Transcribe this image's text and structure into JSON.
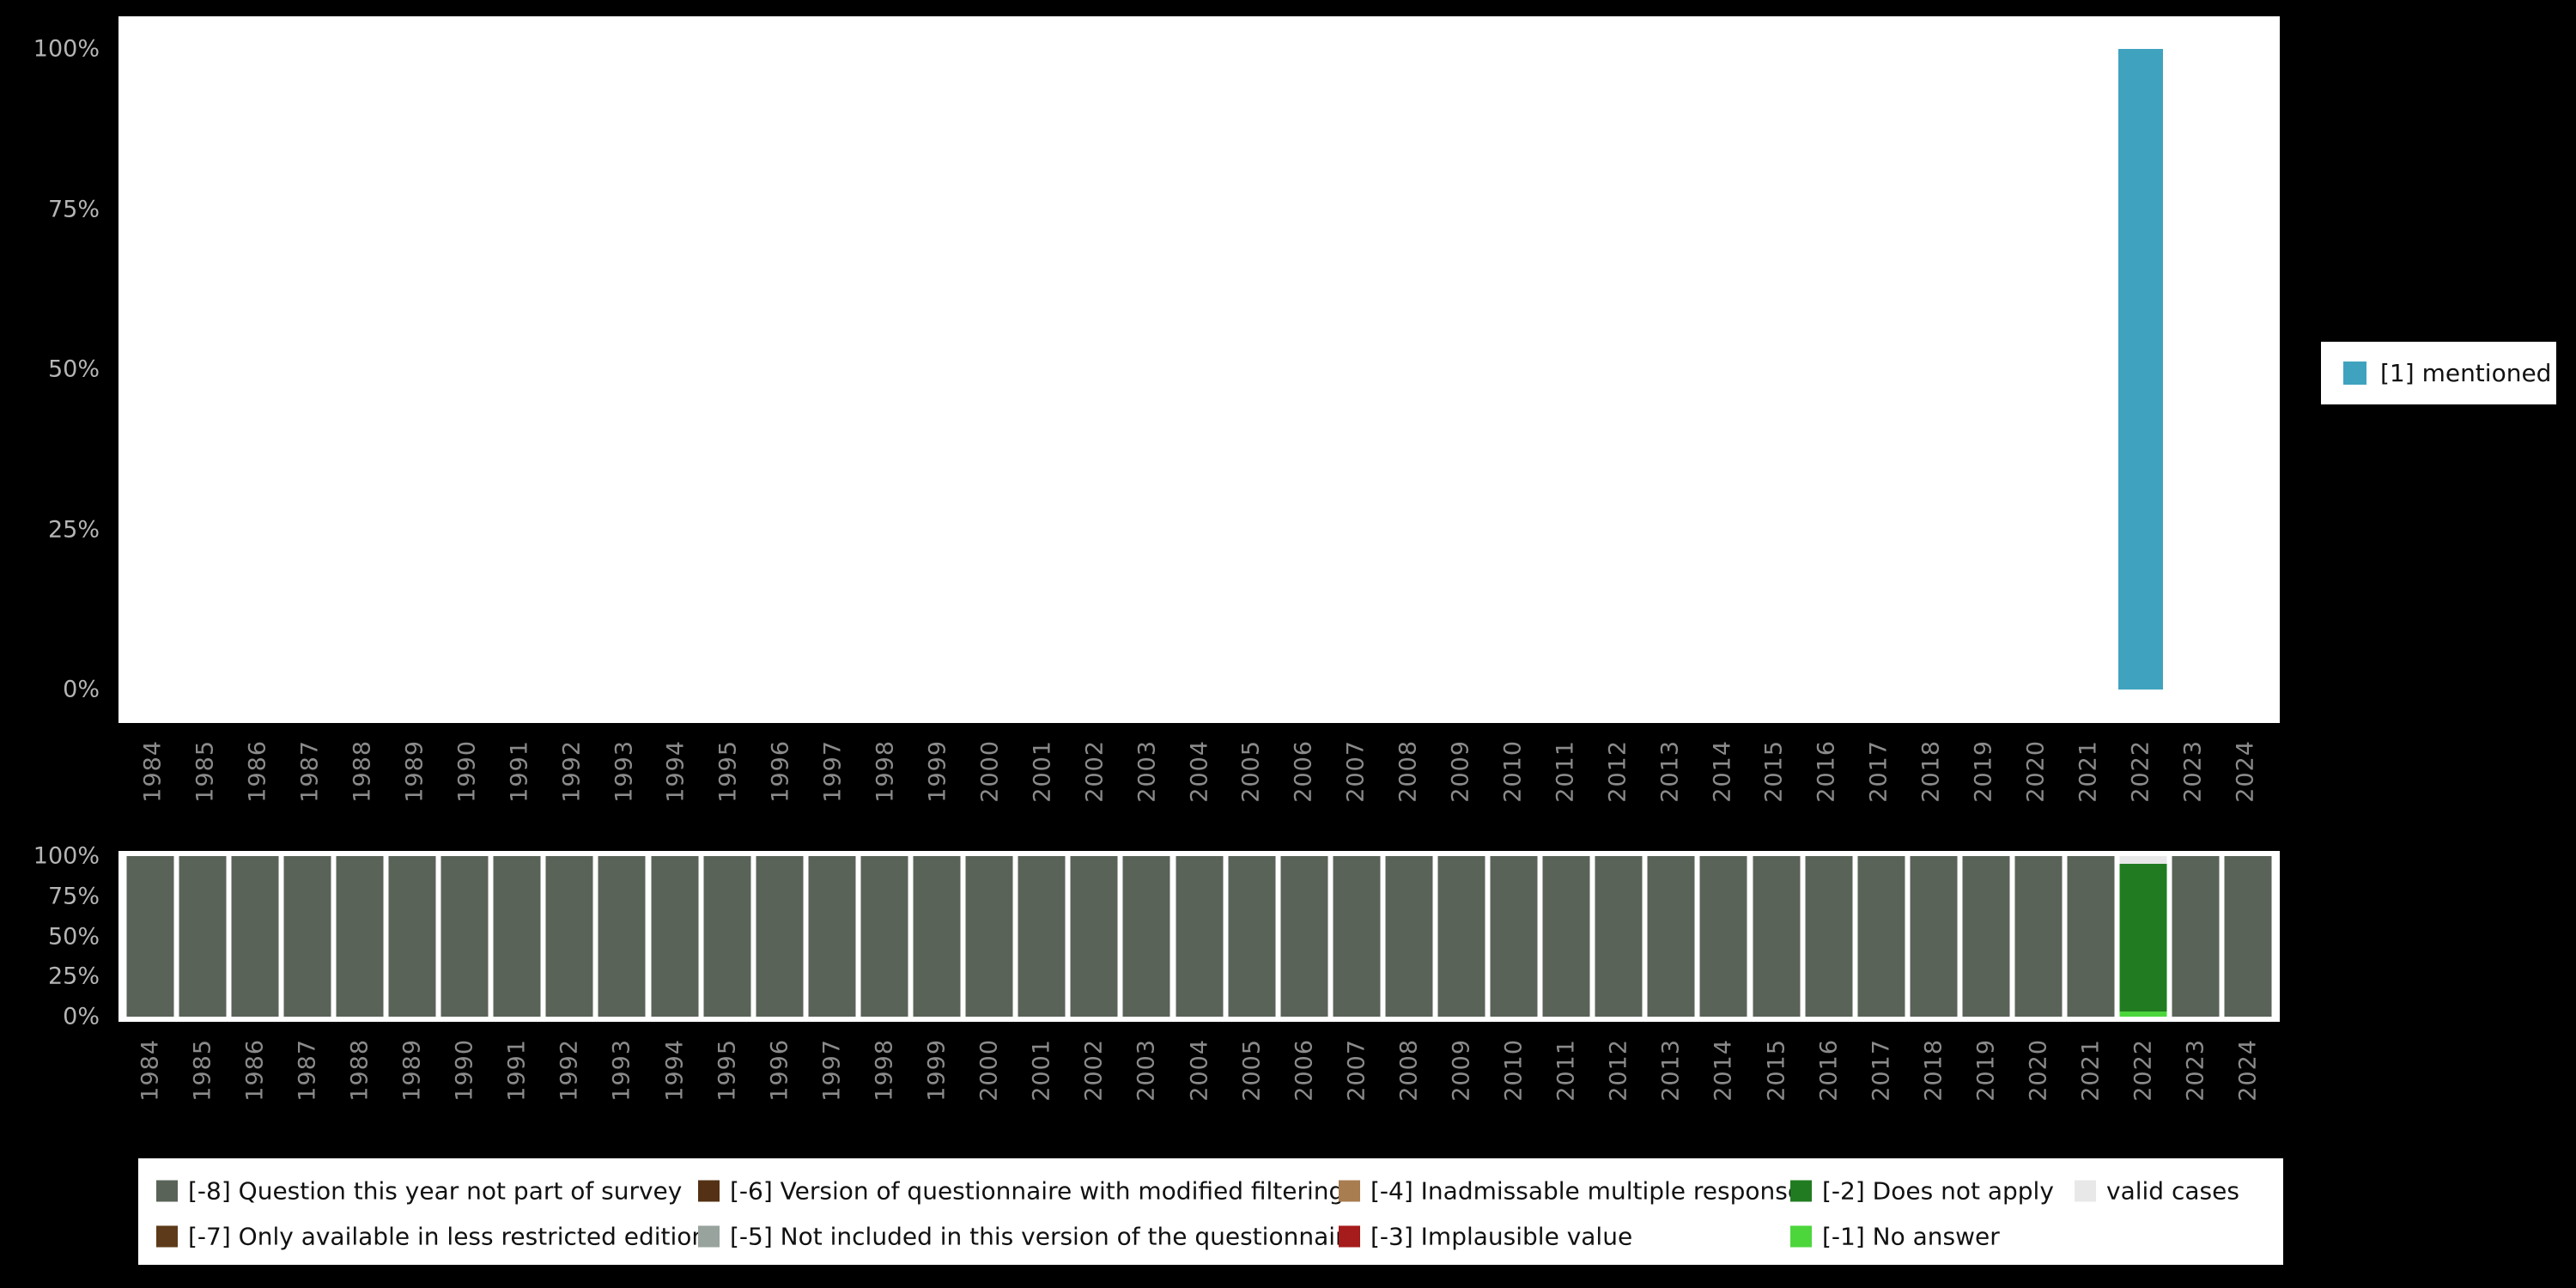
{
  "page": {
    "background": "#000000",
    "panel_background": "#ffffff"
  },
  "chart_data": [
    {
      "type": "bar",
      "title": "",
      "xlabel": "",
      "ylabel": "",
      "ylim": [
        0,
        100
      ],
      "y_ticks": [
        "0%",
        "25%",
        "50%",
        "75%",
        "100%"
      ],
      "legend_position": "right",
      "categories": [
        "1984",
        "1985",
        "1986",
        "1987",
        "1988",
        "1989",
        "1990",
        "1991",
        "1992",
        "1993",
        "1994",
        "1995",
        "1996",
        "1997",
        "1998",
        "1999",
        "2000",
        "2001",
        "2002",
        "2003",
        "2004",
        "2005",
        "2006",
        "2007",
        "2008",
        "2009",
        "2010",
        "2011",
        "2012",
        "2013",
        "2014",
        "2015",
        "2016",
        "2017",
        "2018",
        "2019",
        "2020",
        "2021",
        "2022",
        "2023",
        "2024"
      ],
      "series": [
        {
          "name": "[1] mentioned",
          "color": "#3FA3BF",
          "values": [
            0,
            0,
            0,
            0,
            0,
            0,
            0,
            0,
            0,
            0,
            0,
            0,
            0,
            0,
            0,
            0,
            0,
            0,
            0,
            0,
            0,
            0,
            0,
            0,
            0,
            0,
            0,
            0,
            0,
            0,
            0,
            0,
            0,
            0,
            0,
            0,
            0,
            0,
            100,
            0,
            0
          ]
        }
      ]
    },
    {
      "type": "stacked-bar",
      "title": "",
      "xlabel": "",
      "ylabel": "",
      "ylim": [
        0,
        100
      ],
      "y_ticks": [
        "0%",
        "25%",
        "50%",
        "75%",
        "100%"
      ],
      "legend_position": "bottom",
      "categories": [
        "1984",
        "1985",
        "1986",
        "1987",
        "1988",
        "1989",
        "1990",
        "1991",
        "1992",
        "1993",
        "1994",
        "1995",
        "1996",
        "1997",
        "1998",
        "1999",
        "2000",
        "2001",
        "2002",
        "2003",
        "2004",
        "2005",
        "2006",
        "2007",
        "2008",
        "2009",
        "2010",
        "2011",
        "2012",
        "2013",
        "2014",
        "2015",
        "2016",
        "2017",
        "2018",
        "2019",
        "2020",
        "2021",
        "2022",
        "2023",
        "2024"
      ],
      "series": [
        {
          "name": "[-8] Question this year not part of survey",
          "color": "#5A6358",
          "values": [
            100,
            100,
            100,
            100,
            100,
            100,
            100,
            100,
            100,
            100,
            100,
            100,
            100,
            100,
            100,
            100,
            100,
            100,
            100,
            100,
            100,
            100,
            100,
            100,
            100,
            100,
            100,
            100,
            100,
            100,
            100,
            100,
            100,
            100,
            100,
            100,
            100,
            100,
            0,
            100,
            100
          ]
        },
        {
          "name": "[-1] No answer",
          "color": "#4CD63C",
          "values": [
            0,
            0,
            0,
            0,
            0,
            0,
            0,
            0,
            0,
            0,
            0,
            0,
            0,
            0,
            0,
            0,
            0,
            0,
            0,
            0,
            0,
            0,
            0,
            0,
            0,
            0,
            0,
            0,
            0,
            0,
            0,
            0,
            0,
            0,
            0,
            0,
            0,
            0,
            3,
            0,
            0
          ]
        },
        {
          "name": "[-2] Does not apply",
          "color": "#217C21",
          "values": [
            0,
            0,
            0,
            0,
            0,
            0,
            0,
            0,
            0,
            0,
            0,
            0,
            0,
            0,
            0,
            0,
            0,
            0,
            0,
            0,
            0,
            0,
            0,
            0,
            0,
            0,
            0,
            0,
            0,
            0,
            0,
            0,
            0,
            0,
            0,
            0,
            0,
            0,
            92,
            0,
            0
          ]
        },
        {
          "name": "valid cases",
          "color": "#E8E8E8",
          "values": [
            0,
            0,
            0,
            0,
            0,
            0,
            0,
            0,
            0,
            0,
            0,
            0,
            0,
            0,
            0,
            0,
            0,
            0,
            0,
            0,
            0,
            0,
            0,
            0,
            0,
            0,
            0,
            0,
            0,
            0,
            0,
            0,
            0,
            0,
            0,
            0,
            0,
            0,
            5,
            0,
            0
          ]
        }
      ]
    }
  ],
  "top_legend": {
    "items": [
      {
        "label": "[1] mentioned",
        "color": "#3FA3BF"
      }
    ]
  },
  "missing_legend": {
    "items": [
      {
        "label": "[-8] Question this year not part of survey",
        "color": "#5A6358"
      },
      {
        "label": "[-7] Only available in less restricted edition",
        "color": "#5D3A1A"
      },
      {
        "label": "[-6] Version of questionnaire with modified filtering",
        "color": "#543114"
      },
      {
        "label": "[-5] Not included in this version of the questionnaire",
        "color": "#98A39E"
      },
      {
        "label": "[-4] Inadmissable multiple response",
        "color": "#A87D50"
      },
      {
        "label": "[-3] Implausible value",
        "color": "#A61B1B"
      },
      {
        "label": "[-2] Does not apply",
        "color": "#217C21"
      },
      {
        "label": "[-1] No answer",
        "color": "#4CD63C"
      },
      {
        "label": "valid cases",
        "color": "#E8E8E8"
      }
    ]
  }
}
